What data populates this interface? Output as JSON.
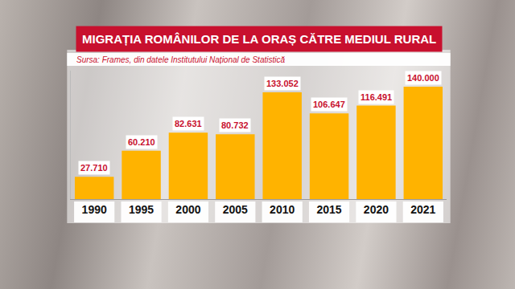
{
  "chart_data": {
    "type": "bar",
    "title": "MIGRAȚIA ROMÂNILOR DE LA ORAȘ CĂTRE MEDIUL RURAL",
    "subtitle": "Sursa: Frames, din datele Institutului Național de Statistică",
    "categories": [
      "1990",
      "1995",
      "2000",
      "2005",
      "2010",
      "2015",
      "2020",
      "2021"
    ],
    "values": [
      27710,
      60210,
      82631,
      80732,
      133052,
      106647,
      116491,
      140000
    ],
    "value_labels": [
      "27.710",
      "60.210",
      "82.631",
      "80.732",
      "133.052",
      "106.647",
      "116.491",
      "140.000"
    ],
    "color": "#ffb300",
    "ylim": [
      0,
      160000
    ],
    "data_labels": true,
    "tick_labels": "x",
    "grid": false
  }
}
